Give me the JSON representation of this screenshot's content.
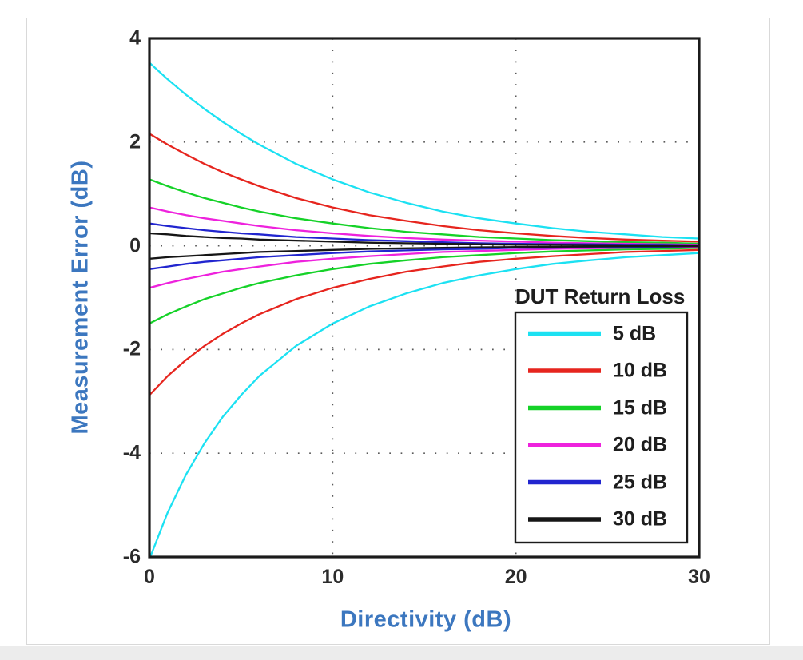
{
  "page": {
    "background": "#ffffff",
    "page_border_color": "#d9d9d9",
    "below_page_strip_color": "#ececec"
  },
  "chart_data": {
    "type": "line",
    "title": "",
    "xlabel": "Directivity (dB)",
    "ylabel": "Measurement Error (dB)",
    "xlim": [
      0,
      30
    ],
    "ylim": [
      -6,
      4
    ],
    "xticks": [
      0,
      10,
      20,
      30
    ],
    "yticks": [
      4,
      2,
      0,
      -2,
      -4,
      -6
    ],
    "grid": "dotted interior gridlines only",
    "legend_position": "lower right",
    "legend_title": "DUT Return Loss",
    "axis_label_color": "#3c77bf",
    "tick_label_color": "#2b2b2b",
    "frame_color": "#1b1b1b",
    "grid_color": "#5a5a5a",
    "x": [
      0,
      1,
      2,
      3,
      4,
      5,
      6,
      8,
      10,
      12,
      14,
      16,
      18,
      20,
      22,
      24,
      26,
      28,
      30
    ],
    "series": [
      {
        "name": "5 dB",
        "color": "#1ce1f2",
        "upper": [
          3.53,
          3.21,
          2.91,
          2.64,
          2.39,
          2.16,
          1.95,
          1.58,
          1.28,
          1.03,
          0.83,
          0.66,
          0.53,
          0.43,
          0.34,
          0.27,
          0.22,
          0.17,
          0.14
        ],
        "lower": [
          -6.04,
          -5.14,
          -4.41,
          -3.81,
          -3.3,
          -2.88,
          -2.51,
          -1.93,
          -1.5,
          -1.17,
          -0.92,
          -0.72,
          -0.57,
          -0.45,
          -0.35,
          -0.28,
          -0.22,
          -0.18,
          -0.14
        ]
      },
      {
        "name": "10 dB",
        "color": "#e6251e",
        "upper": [
          2.16,
          1.95,
          1.76,
          1.58,
          1.42,
          1.28,
          1.15,
          0.92,
          0.74,
          0.59,
          0.48,
          0.38,
          0.3,
          0.24,
          0.19,
          0.15,
          0.12,
          0.1,
          0.08
        ],
        "lower": [
          -2.88,
          -2.51,
          -2.2,
          -1.93,
          -1.7,
          -1.5,
          -1.32,
          -1.03,
          -0.81,
          -0.64,
          -0.5,
          -0.4,
          -0.31,
          -0.25,
          -0.2,
          -0.16,
          -0.12,
          -0.1,
          -0.08
        ]
      },
      {
        "name": "15 dB",
        "color": "#15d228",
        "upper": [
          1.28,
          1.15,
          1.03,
          0.92,
          0.83,
          0.74,
          0.66,
          0.53,
          0.43,
          0.34,
          0.27,
          0.22,
          0.17,
          0.14,
          0.11,
          0.09,
          0.07,
          0.06,
          0.04
        ],
        "lower": [
          -1.5,
          -1.32,
          -1.17,
          -1.03,
          -0.92,
          -0.81,
          -0.72,
          -0.57,
          -0.45,
          -0.35,
          -0.28,
          -0.22,
          -0.18,
          -0.14,
          -0.11,
          -0.09,
          -0.07,
          -0.06,
          -0.04
        ]
      },
      {
        "name": "20 dB",
        "color": "#ee22dd",
        "upper": [
          0.74,
          0.66,
          0.59,
          0.53,
          0.48,
          0.43,
          0.38,
          0.3,
          0.24,
          0.19,
          0.15,
          0.12,
          0.1,
          0.08,
          0.06,
          0.05,
          0.04,
          0.03,
          0.02
        ],
        "lower": [
          -0.81,
          -0.72,
          -0.64,
          -0.57,
          -0.5,
          -0.45,
          -0.4,
          -0.31,
          -0.25,
          -0.2,
          -0.16,
          -0.12,
          -0.1,
          -0.08,
          -0.06,
          -0.05,
          -0.04,
          -0.03,
          -0.02
        ]
      },
      {
        "name": "25 dB",
        "color": "#2125cf",
        "upper": [
          0.43,
          0.38,
          0.34,
          0.3,
          0.27,
          0.24,
          0.22,
          0.17,
          0.14,
          0.11,
          0.09,
          0.07,
          0.05,
          0.04,
          0.03,
          0.03,
          0.02,
          0.02,
          0.01
        ],
        "lower": [
          -0.45,
          -0.4,
          -0.35,
          -0.31,
          -0.28,
          -0.25,
          -0.22,
          -0.18,
          -0.14,
          -0.11,
          -0.09,
          -0.07,
          -0.06,
          -0.04,
          -0.04,
          -0.03,
          -0.02,
          -0.02,
          -0.01
        ]
      },
      {
        "name": "30 dB",
        "color": "#161616",
        "upper": [
          0.24,
          0.22,
          0.19,
          0.17,
          0.15,
          0.14,
          0.12,
          0.1,
          0.08,
          0.06,
          0.05,
          0.04,
          0.03,
          0.02,
          0.02,
          0.015,
          0.01,
          0.01,
          0.01
        ],
        "lower": [
          -0.25,
          -0.22,
          -0.2,
          -0.18,
          -0.16,
          -0.14,
          -0.12,
          -0.1,
          -0.08,
          -0.06,
          -0.05,
          -0.04,
          -0.03,
          -0.025,
          -0.02,
          -0.015,
          -0.01,
          -0.01,
          -0.01
        ]
      }
    ]
  }
}
